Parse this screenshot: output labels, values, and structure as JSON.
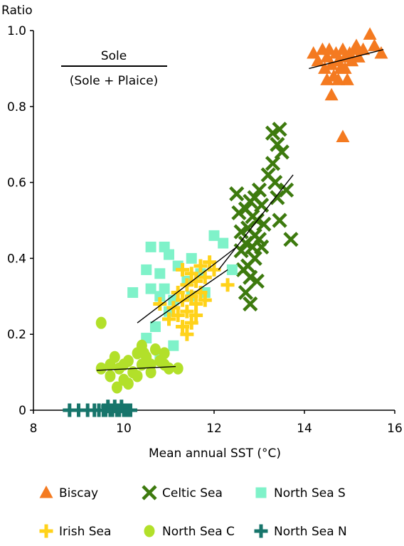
{
  "chart_data": {
    "type": "scatter",
    "xlabel": "Mean annual SST (°C)",
    "ylabel": "Ratio",
    "xlim": [
      8,
      16
    ],
    "ylim": [
      0,
      1.0
    ],
    "x_ticks": [
      "8",
      "10",
      "12",
      "14",
      "16"
    ],
    "y_ticks": [
      "0",
      "0.2",
      "0.4",
      "0.6",
      "0.8",
      "1.0"
    ],
    "annotation": {
      "numerator": "Sole",
      "denominator": "(Sole + Plaice)"
    },
    "grid": false,
    "legend_position": "bottom",
    "series": [
      {
        "name": "Biscay",
        "marker": "triangle",
        "color": "#f47a20",
        "points": [
          [
            14.2,
            0.94
          ],
          [
            14.3,
            0.92
          ],
          [
            14.45,
            0.9
          ],
          [
            14.5,
            0.93
          ],
          [
            14.55,
            0.95
          ],
          [
            14.6,
            0.91
          ],
          [
            14.65,
            0.88
          ],
          [
            14.7,
            0.94
          ],
          [
            14.75,
            0.92
          ],
          [
            14.8,
            0.9
          ],
          [
            14.85,
            0.95
          ],
          [
            14.9,
            0.93
          ],
          [
            14.95,
            0.87
          ],
          [
            15.0,
            0.94
          ],
          [
            15.05,
            0.92
          ],
          [
            15.1,
            0.95
          ],
          [
            15.2,
            0.93
          ],
          [
            15.3,
            0.95
          ],
          [
            15.45,
            0.99
          ],
          [
            15.55,
            0.96
          ],
          [
            15.7,
            0.94
          ],
          [
            14.6,
            0.83
          ],
          [
            14.75,
            0.87
          ],
          [
            14.9,
            0.9
          ],
          [
            14.85,
            0.72
          ],
          [
            14.5,
            0.87
          ],
          [
            15.15,
            0.96
          ],
          [
            14.4,
            0.95
          ]
        ],
        "trend": [
          [
            14.1,
            0.9
          ],
          [
            15.75,
            0.95
          ]
        ]
      },
      {
        "name": "Celtic Sea",
        "marker": "x",
        "color": "#3d7a0e",
        "points": [
          [
            13.3,
            0.73
          ],
          [
            13.45,
            0.74
          ],
          [
            13.4,
            0.7
          ],
          [
            13.3,
            0.65
          ],
          [
            13.5,
            0.68
          ],
          [
            13.2,
            0.62
          ],
          [
            13.35,
            0.6
          ],
          [
            13.6,
            0.58
          ],
          [
            13.0,
            0.58
          ],
          [
            12.9,
            0.56
          ],
          [
            12.8,
            0.55
          ],
          [
            12.5,
            0.57
          ],
          [
            13.05,
            0.54
          ],
          [
            12.7,
            0.53
          ],
          [
            12.85,
            0.51
          ],
          [
            12.95,
            0.5
          ],
          [
            13.1,
            0.49
          ],
          [
            12.75,
            0.48
          ],
          [
            12.6,
            0.47
          ],
          [
            12.9,
            0.46
          ],
          [
            13.0,
            0.45
          ],
          [
            12.7,
            0.44
          ],
          [
            12.85,
            0.43
          ],
          [
            12.6,
            0.42
          ],
          [
            12.9,
            0.4
          ],
          [
            12.75,
            0.38
          ],
          [
            12.65,
            0.37
          ],
          [
            12.8,
            0.35
          ],
          [
            12.95,
            0.34
          ],
          [
            12.7,
            0.31
          ],
          [
            12.8,
            0.28
          ],
          [
            13.45,
            0.5
          ],
          [
            13.7,
            0.45
          ],
          [
            13.4,
            0.56
          ],
          [
            12.55,
            0.52
          ],
          [
            13.05,
            0.43
          ]
        ],
        "trend": [
          [
            12.1,
            0.37
          ],
          [
            13.75,
            0.62
          ]
        ]
      },
      {
        "name": "North Sea S",
        "marker": "square",
        "color": "#7ff2c9",
        "points": [
          [
            10.6,
            0.43
          ],
          [
            10.5,
            0.37
          ],
          [
            10.6,
            0.32
          ],
          [
            10.2,
            0.31
          ],
          [
            10.8,
            0.3
          ],
          [
            11.0,
            0.41
          ],
          [
            11.2,
            0.38
          ],
          [
            11.5,
            0.4
          ],
          [
            10.8,
            0.36
          ],
          [
            10.9,
            0.32
          ],
          [
            11.1,
            0.29
          ],
          [
            11.4,
            0.34
          ],
          [
            11.7,
            0.36
          ],
          [
            12.0,
            0.46
          ],
          [
            12.2,
            0.44
          ],
          [
            12.4,
            0.37
          ],
          [
            11.0,
            0.26
          ],
          [
            10.7,
            0.22
          ],
          [
            11.1,
            0.17
          ],
          [
            10.5,
            0.19
          ],
          [
            11.5,
            0.3
          ],
          [
            10.9,
            0.43
          ],
          [
            11.8,
            0.31
          ],
          [
            10.8,
            0.14
          ]
        ],
        "trend": [
          [
            10.3,
            0.23
          ],
          [
            12.5,
            0.43
          ]
        ]
      },
      {
        "name": "Irish Sea",
        "marker": "plus",
        "color": "#ffd21a",
        "points": [
          [
            11.3,
            0.37
          ],
          [
            11.5,
            0.36
          ],
          [
            11.7,
            0.38
          ],
          [
            11.9,
            0.39
          ],
          [
            11.6,
            0.34
          ],
          [
            11.4,
            0.33
          ],
          [
            11.8,
            0.35
          ],
          [
            12.0,
            0.37
          ],
          [
            11.2,
            0.31
          ],
          [
            11.5,
            0.3
          ],
          [
            11.7,
            0.31
          ],
          [
            11.3,
            0.29
          ],
          [
            11.6,
            0.28
          ],
          [
            11.8,
            0.29
          ],
          [
            11.1,
            0.27
          ],
          [
            11.4,
            0.26
          ],
          [
            11.2,
            0.25
          ],
          [
            11.6,
            0.25
          ],
          [
            11.5,
            0.23
          ],
          [
            11.3,
            0.22
          ],
          [
            11.4,
            0.2
          ],
          [
            10.8,
            0.28
          ],
          [
            12.3,
            0.33
          ],
          [
            11.0,
            0.24
          ]
        ],
        "trend": [
          [
            10.6,
            0.23
          ],
          [
            12.3,
            0.37
          ]
        ]
      },
      {
        "name": "North Sea C",
        "marker": "circle",
        "color": "#b2e02a",
        "points": [
          [
            9.5,
            0.23
          ],
          [
            9.5,
            0.11
          ],
          [
            9.7,
            0.12
          ],
          [
            9.8,
            0.14
          ],
          [
            9.9,
            0.11
          ],
          [
            10.0,
            0.12
          ],
          [
            10.1,
            0.13
          ],
          [
            10.3,
            0.15
          ],
          [
            10.4,
            0.17
          ],
          [
            10.5,
            0.14
          ],
          [
            10.6,
            0.12
          ],
          [
            10.7,
            0.16
          ],
          [
            10.8,
            0.13
          ],
          [
            10.9,
            0.12
          ],
          [
            11.0,
            0.11
          ],
          [
            11.2,
            0.11
          ],
          [
            10.2,
            0.1
          ],
          [
            10.3,
            0.09
          ],
          [
            10.0,
            0.08
          ],
          [
            9.85,
            0.06
          ],
          [
            10.4,
            0.12
          ],
          [
            10.45,
            0.15
          ],
          [
            10.6,
            0.1
          ],
          [
            10.9,
            0.15
          ],
          [
            9.7,
            0.09
          ],
          [
            10.1,
            0.07
          ]
        ],
        "trend": [
          [
            9.4,
            0.105
          ],
          [
            11.15,
            0.115
          ]
        ]
      },
      {
        "name": "North Sea N",
        "marker": "plus",
        "color": "#17756b",
        "points": [
          [
            8.8,
            0.0
          ],
          [
            9.0,
            0.0
          ],
          [
            9.2,
            0.0
          ],
          [
            9.35,
            0.0
          ],
          [
            9.45,
            0.0
          ],
          [
            9.55,
            0.0
          ],
          [
            9.6,
            0.0
          ],
          [
            9.7,
            0.0
          ],
          [
            9.75,
            0.0
          ],
          [
            9.85,
            0.0
          ],
          [
            9.9,
            0.0
          ],
          [
            10.0,
            0.0
          ],
          [
            10.05,
            0.0
          ],
          [
            10.1,
            0.0
          ],
          [
            9.65,
            0.01
          ],
          [
            9.8,
            0.01
          ],
          [
            9.95,
            0.01
          ],
          [
            10.15,
            0.0
          ]
        ],
        "trend": null
      }
    ]
  }
}
